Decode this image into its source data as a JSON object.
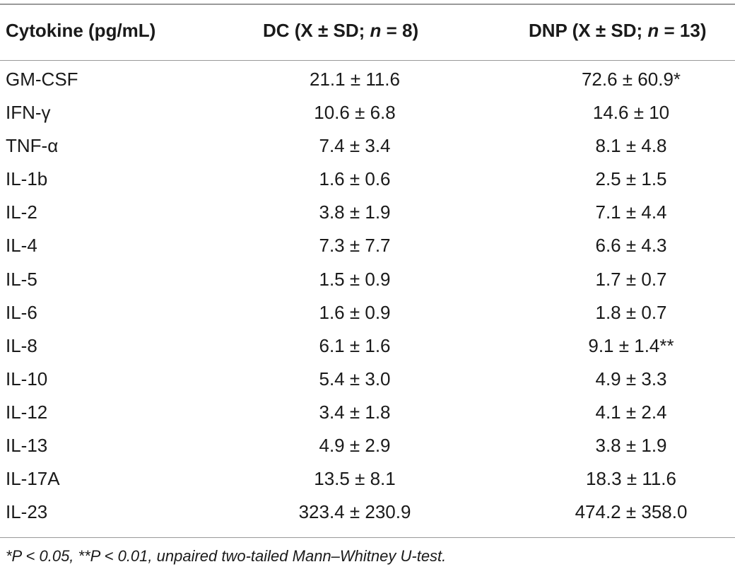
{
  "table": {
    "header": {
      "col1": "Cytokine (pg/mL)",
      "col2_pre": "DC (X ± SD; ",
      "col2_n": "n",
      "col2_post": " = 8)",
      "col3_pre": "DNP (X ± SD; ",
      "col3_n": "n",
      "col3_post": " = 13)"
    },
    "rows": [
      {
        "cytokine": "GM-CSF",
        "dc": "21.1 ± 11.6",
        "dnp": "72.6 ± 60.9*"
      },
      {
        "cytokine": "IFN-γ",
        "dc": "10.6 ± 6.8",
        "dnp": "14.6 ± 10"
      },
      {
        "cytokine": "TNF-α",
        "dc": "7.4 ± 3.4",
        "dnp": "8.1 ± 4.8"
      },
      {
        "cytokine": "IL-1b",
        "dc": "1.6 ± 0.6",
        "dnp": "2.5 ± 1.5"
      },
      {
        "cytokine": "IL-2",
        "dc": "3.8 ± 1.9",
        "dnp": "7.1 ± 4.4"
      },
      {
        "cytokine": "IL-4",
        "dc": "7.3 ± 7.7",
        "dnp": "6.6 ± 4.3"
      },
      {
        "cytokine": "IL-5",
        "dc": "1.5 ± 0.9",
        "dnp": "1.7 ± 0.7"
      },
      {
        "cytokine": "IL-6",
        "dc": "1.6 ± 0.9",
        "dnp": "1.8 ± 0.7"
      },
      {
        "cytokine": "IL-8",
        "dc": "6.1 ± 1.6",
        "dnp": "9.1 ± 1.4**"
      },
      {
        "cytokine": "IL-10",
        "dc": "5.4 ± 3.0",
        "dnp": "4.9 ± 3.3"
      },
      {
        "cytokine": "IL-12",
        "dc": "3.4 ± 1.8",
        "dnp": "4.1 ± 2.4"
      },
      {
        "cytokine": "IL-13",
        "dc": "4.9 ± 2.9",
        "dnp": "3.8 ± 1.9"
      },
      {
        "cytokine": "IL-17A",
        "dc": "13.5 ± 8.1",
        "dnp": "18.3 ± 11.6"
      },
      {
        "cytokine": "IL-23",
        "dc": "323.4 ± 230.9",
        "dnp": "474.2 ± 358.0"
      }
    ]
  },
  "footnote": "*P < 0.05, **P < 0.01, unpaired two-tailed Mann–Whitney U-test."
}
